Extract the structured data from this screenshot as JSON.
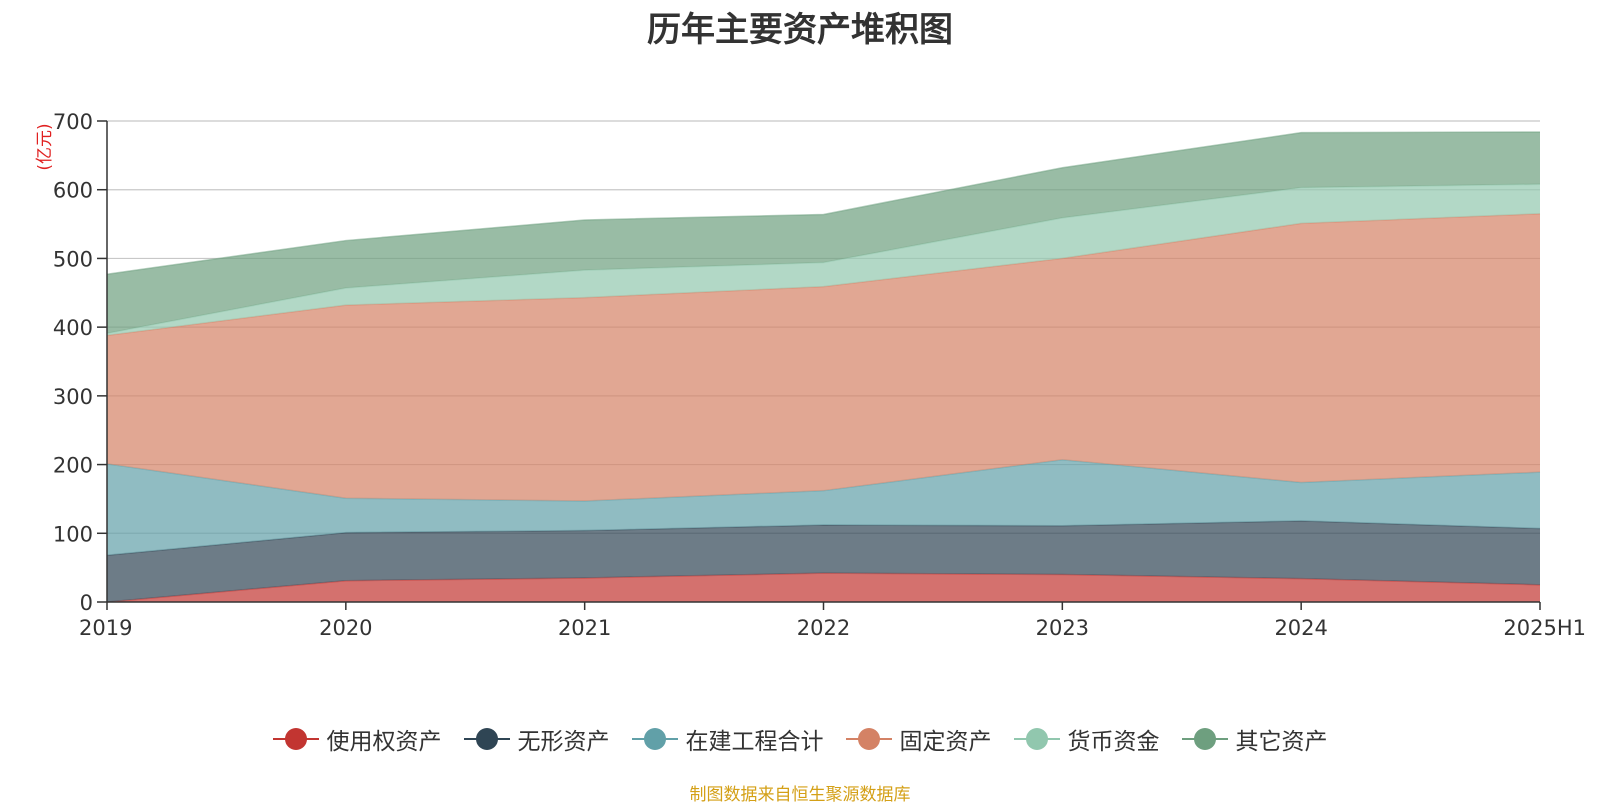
{
  "chart_data": {
    "type": "area",
    "stacked": true,
    "title": "历年主要资产堆积图",
    "unit": "(亿元)",
    "x": [
      "2019",
      "2020",
      "2021",
      "2022",
      "2023",
      "2024",
      "2025H1"
    ],
    "ylim": [
      0,
      700
    ],
    "yticks": [
      0,
      100,
      200,
      300,
      400,
      500,
      600,
      700
    ],
    "grid": true,
    "legend_position": "bottom",
    "series": [
      {
        "name": "使用权资产",
        "color": "#c23531",
        "values": [
          0,
          31,
          35,
          42,
          40,
          34,
          25
        ]
      },
      {
        "name": "无形资产",
        "color": "#2f4554",
        "values": [
          68,
          70,
          69,
          70,
          71,
          84,
          82
        ]
      },
      {
        "name": "在建工程合计",
        "color": "#61a0a8",
        "values": [
          133,
          50,
          43,
          50,
          96,
          56,
          82
        ]
      },
      {
        "name": "固定资产",
        "color": "#d48265",
        "values": [
          187,
          281,
          296,
          297,
          293,
          377,
          376
        ]
      },
      {
        "name": "货币资金",
        "color": "#91c7ae",
        "values": [
          3,
          25,
          40,
          35,
          59,
          52,
          43
        ]
      },
      {
        "name": "其它资产",
        "color": "#6e9f7f",
        "values": [
          86,
          69,
          73,
          70,
          73,
          80,
          76
        ]
      }
    ]
  },
  "source_note": "制图数据来自恒生聚源数据库"
}
